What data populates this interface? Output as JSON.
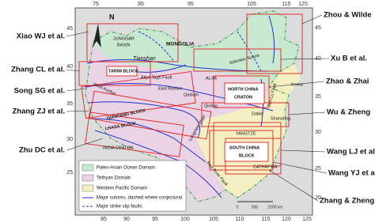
{
  "north": "N",
  "map_labels": [
    "MONGOLIA",
    "JUNGGAR",
    "BASIN",
    "Tianshan",
    "TARIM BLOCK",
    "Altyn Tagh Fault",
    "West Kunlun",
    "East Kunlun",
    "Qaidam",
    "ALXA",
    "Solonker Suture",
    "NORTH CHINA",
    "CRATON",
    "Qinling",
    "Dabie",
    "Tan-Lu Fault",
    "Korea",
    "Shandong",
    "QIANTANG BLOCK",
    "LHASA BLOCK",
    "INDIA CRATON",
    "Longmen Shan",
    "YANGTZE",
    "SOUTH CHINA",
    "BLOCK",
    "CATHAYSIA",
    "Red River Fault"
  ],
  "legend": [
    "Paleo-Asian Ocean Domain",
    "Tethyan Domain",
    "Western Pacific Domain",
    "Major sutures, dashed where conjectural",
    "Major strike slip faults"
  ],
  "scale": [
    "0",
    "500",
    "1000 km"
  ],
  "axes": {
    "top": [
      75,
      85,
      95,
      105,
      115,
      125
    ],
    "bottom": [
      85,
      90,
      95,
      100,
      105,
      110,
      115,
      120,
      125
    ],
    "left": [
      45,
      40,
      35,
      30,
      25
    ],
    "right": [
      45,
      40,
      35,
      30,
      25,
      20
    ]
  },
  "left_refs": [
    "Xiao WJ et al.",
    "Zhang CL et al.",
    "Song SG et al.",
    "Zhang ZJ et al.",
    "Zhu DC et al."
  ],
  "right_refs": [
    "Zhou & Wilde",
    "Xu B et al.",
    "Zhao & Zhai",
    "Wu & Zheng",
    "Wang LJ et al.",
    "Wang YJ et al.",
    "Zhang & Zheng"
  ]
}
